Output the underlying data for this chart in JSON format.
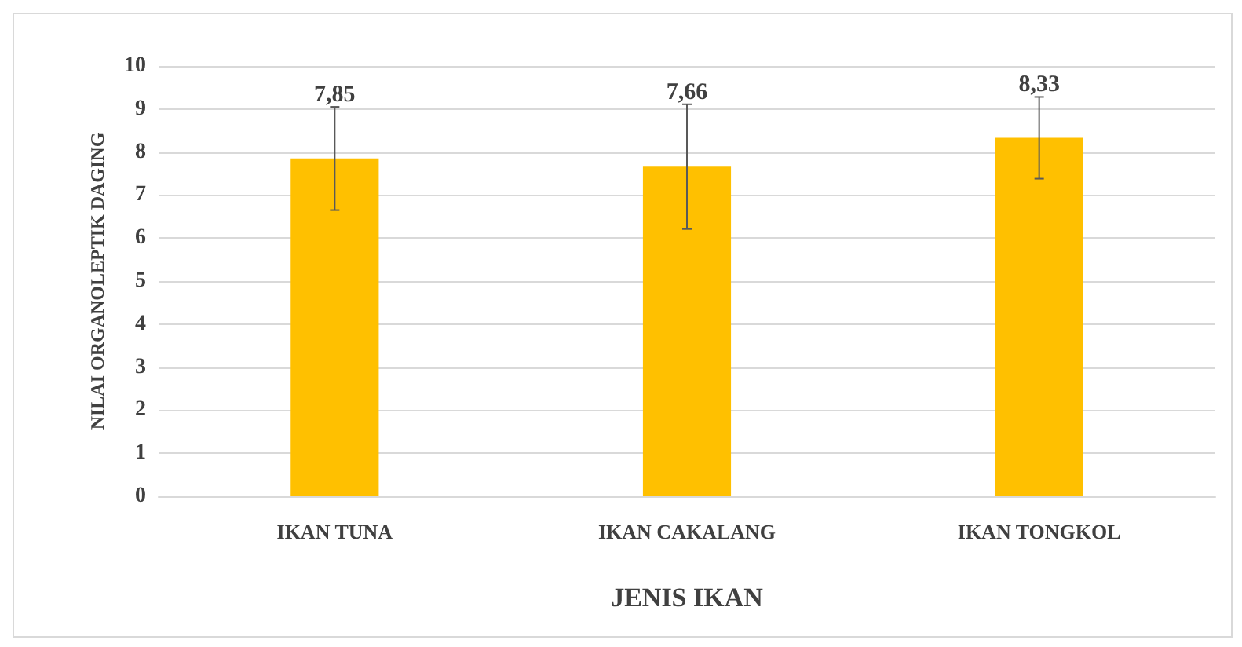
{
  "chart_data": {
    "type": "bar",
    "xlabel": "JENIS IKAN",
    "ylabel": "NILAI ORGANOLEPTIK DAGING",
    "categories": [
      "IKAN TUNA",
      "IKAN CAKALANG",
      "IKAN TONGKOL"
    ],
    "values": [
      7.85,
      7.66,
      8.33
    ],
    "color": "#ffc000",
    "errors": [
      1.2,
      1.45,
      0.95
    ],
    "value_labels": [
      "7,85",
      "7,66",
      "8,33"
    ],
    "ylim": [
      0,
      10
    ],
    "yticks": [
      0,
      1,
      2,
      3,
      4,
      5,
      6,
      7,
      8,
      9,
      10
    ],
    "grid": "y"
  }
}
